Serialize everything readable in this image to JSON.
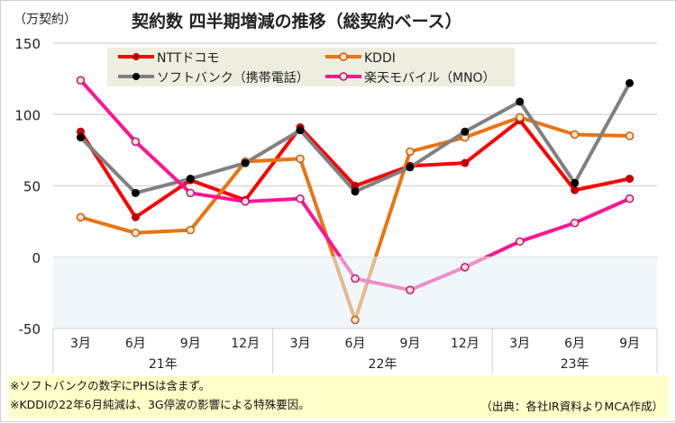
{
  "chart_data": {
    "type": "line",
    "title": "契約数 四半期増減の推移（総契約ベース）",
    "ylabel": "（万契約）",
    "ylim": [
      -50,
      150
    ],
    "yticks": [
      "150",
      "100",
      "50",
      "0",
      "-50"
    ],
    "categories": [
      "3月",
      "6月",
      "9月",
      "12月",
      "3月",
      "6月",
      "9月",
      "12月",
      "3月",
      "6月",
      "9月"
    ],
    "year_groups": [
      {
        "label": "21年",
        "count": 4
      },
      {
        "label": "22年",
        "count": 4
      },
      {
        "label": "23年",
        "count": 3
      }
    ],
    "legend_position": "top",
    "series": [
      {
        "name": "NTTドコモ",
        "color": "#ff0000",
        "marker": "#c00000",
        "hollow": false,
        "values": [
          88,
          28,
          54,
          40,
          91,
          50,
          64,
          66,
          96,
          47,
          55
        ]
      },
      {
        "name": "KDDI",
        "color": "#e87511",
        "marker": "#c0600a",
        "hollow": true,
        "values": [
          28,
          17,
          19,
          67,
          69,
          -44,
          74,
          84,
          98,
          86,
          85
        ]
      },
      {
        "name": "ソフトバンク（携帯電話）",
        "color": "#808080",
        "marker": "#000000",
        "hollow": false,
        "values": [
          84,
          45,
          55,
          66,
          89,
          46,
          63,
          88,
          109,
          52,
          122
        ]
      },
      {
        "name": "楽天モバイル（MNO）",
        "color": "#ff1493",
        "marker": "#c0107a",
        "hollow": true,
        "values": [
          124,
          81,
          45,
          39,
          41,
          -15,
          -23,
          -7,
          11,
          24,
          41
        ]
      }
    ]
  },
  "notes": [
    "※ソフトバンクの数字にPHSは含まず。",
    "※KDDIの22年6月純減は、3G停波の影響による特殊要因。"
  ],
  "source": "（出典：各社IR資料よりMCA作成）"
}
